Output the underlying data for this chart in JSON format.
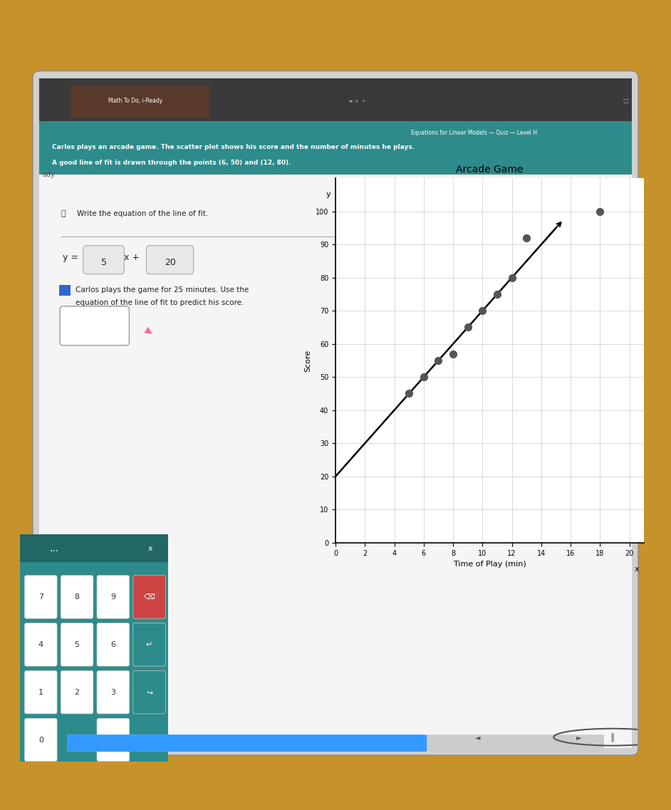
{
  "bg_outer": "#c8922a",
  "laptop_frame_color": "#1a1a1a",
  "laptop_screen_bg": "#d0d0d0",
  "browser_bar_color": "#3a3a3a",
  "browser_tab_color": "#5a3a2a",
  "tab_text": "Math To Do, i-Ready",
  "page_title_bar_color": "#2e8b8b",
  "page_title_text": "Equations for Linear Models — Quiz — Level H",
  "problem_text_line1": "Carlos plays an arcade game. The scatter plot shows his score and the number of minutes he plays.",
  "problem_text_line2": "A good line of fit is drawn through the points (6, 50) and (12, 80).",
  "section1_label": "① Write the equation of the line of fit.",
  "equation_label": "y =",
  "eq_box1_value": "5",
  "eq_mid_text": "x +",
  "eq_box2_value": "20",
  "section2_text_line1": "Carlos plays the game for 25 minutes. Use the",
  "section2_text_line2": "equation of the line of fit to predict his score.",
  "answer_box_color": "#ffffff",
  "content_bg": "#f0f0f0",
  "chart_title": "Arcade Game",
  "chart_xlabel": "Time of Play (min)",
  "chart_ylabel": "Score",
  "x_axis_label_var": "x",
  "y_axis_label_var": "y",
  "x_ticks": [
    0,
    2,
    4,
    6,
    8,
    10,
    12,
    14,
    16,
    18,
    20
  ],
  "y_ticks": [
    0,
    10,
    20,
    30,
    40,
    50,
    60,
    70,
    80,
    90,
    100
  ],
  "scatter_x": [
    5,
    6,
    7,
    8,
    9,
    10,
    11,
    12,
    13,
    18
  ],
  "scatter_y": [
    45,
    50,
    55,
    57,
    65,
    70,
    75,
    80,
    92,
    100
  ],
  "scatter_color": "#555555",
  "line_x": [
    0,
    15
  ],
  "line_y": [
    20,
    95
  ],
  "line_color": "#000000",
  "line_width": 1.8,
  "dot_size": 50,
  "keypad_bg": "#2e8b8b",
  "keypad_button_bg": "#ffffff",
  "progress_bar_color": "#3399ff",
  "progress_bar_bg": "#cccccc",
  "blue_square_color": "#3366cc",
  "pink_cursor_color": "#ff6699"
}
